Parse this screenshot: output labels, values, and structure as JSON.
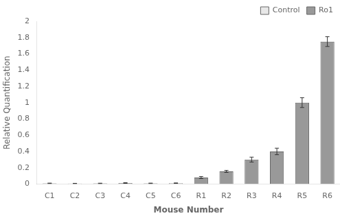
{
  "chart_data": {
    "type": "bar",
    "xlabel": "Mouse Number",
    "ylabel": "Relative Quantification",
    "categories": [
      "C1",
      "C2",
      "C3",
      "C4",
      "C5",
      "C6",
      "R1",
      "R2",
      "R3",
      "R4",
      "R5",
      "R6"
    ],
    "series": [
      {
        "name": "Control",
        "color": "#e8e8e8",
        "values": [
          0.008,
          0.006,
          0.007,
          0.012,
          0.008,
          0.01,
          null,
          null,
          null,
          null,
          null,
          null
        ],
        "errors": [
          0.003,
          0.002,
          0.003,
          0.004,
          0.003,
          0.003,
          null,
          null,
          null,
          null,
          null,
          null
        ]
      },
      {
        "name": "Ro1",
        "color": "#999999",
        "values": [
          null,
          null,
          null,
          null,
          null,
          null,
          0.08,
          0.155,
          0.3,
          0.4,
          1.0,
          1.75
        ],
        "errors": [
          null,
          null,
          null,
          null,
          null,
          null,
          0.012,
          0.012,
          0.03,
          0.04,
          0.06,
          0.06
        ]
      }
    ],
    "ylim": [
      0,
      2
    ],
    "yticks": [
      0,
      0.2,
      0.4,
      0.6,
      0.8,
      1,
      1.2,
      1.4,
      1.6,
      1.8,
      2
    ],
    "grid": false,
    "legend": "upper right"
  }
}
